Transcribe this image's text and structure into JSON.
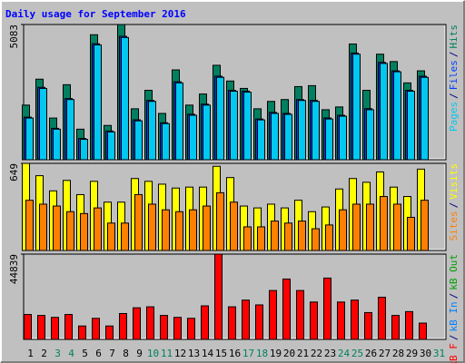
{
  "chart_data": [
    {
      "type": "bar",
      "title": "Daily usage for September 2016",
      "ylim": [
        0,
        5083
      ],
      "yticks": [
        5083
      ],
      "legend_separator": "/",
      "series": [
        {
          "name": "Pages",
          "color": "#00c8f0",
          "values": [
            1566,
            2680,
            1148,
            2262,
            766,
            4315,
            1044,
            4594,
            1462,
            2192,
            1357,
            2888,
            1670,
            2053,
            3097,
            2575,
            2540,
            1496,
            1740,
            1705,
            2227,
            2192,
            1531,
            1636,
            3967,
            1879,
            3619,
            3306,
            2575,
            3097,
            null
          ]
        },
        {
          "name": "Files",
          "color": "#0040ff",
          "values": [
            1600,
            2720,
            1180,
            2300,
            800,
            4360,
            1080,
            4640,
            1500,
            2230,
            1390,
            2930,
            1710,
            2090,
            3140,
            2610,
            2580,
            1530,
            1780,
            1740,
            2260,
            2230,
            1570,
            1670,
            4010,
            1920,
            3660,
            3340,
            2610,
            3140,
            null
          ]
        },
        {
          "name": "Hits",
          "color": "#008060",
          "values": [
            2053,
            3028,
            1566,
            2819,
            1148,
            4698,
            1288,
            5083,
            1914,
            2610,
            1740,
            3376,
            2053,
            2471,
            3550,
            2958,
            2680,
            1914,
            2192,
            2262,
            2749,
            2784,
            1879,
            1984,
            4350,
            2610,
            3967,
            3689,
            2888,
            3341,
            null
          ]
        }
      ]
    },
    {
      "type": "bar",
      "ylim": [
        0,
        649
      ],
      "yticks": [
        649
      ],
      "legend_separator": "/",
      "series": [
        {
          "name": "Sites",
          "color": "#ff8000",
          "values": [
            374,
            345,
            331,
            289,
            275,
            317,
            204,
            204,
            416,
            345,
            303,
            289,
            303,
            331,
            430,
            360,
            176,
            176,
            219,
            204,
            219,
            162,
            190,
            303,
            345,
            345,
            402,
            345,
            247,
            374,
            null
          ]
        },
        {
          "name": "Visits",
          "color": "#ffff00",
          "values": [
            649,
            557,
            444,
            522,
            416,
            515,
            360,
            360,
            536,
            515,
            494,
            465,
            472,
            472,
            627,
            543,
            331,
            317,
            345,
            317,
            374,
            289,
            324,
            458,
            536,
            508,
            585,
            472,
            402,
            606,
            null
          ]
        }
      ]
    },
    {
      "type": "bar",
      "ylim": [
        0,
        44839
      ],
      "yticks": [
        44839
      ],
      "legend_separator": "/",
      "series": [
        {
          "name": "kB F",
          "color": "#ff0000",
          "values": [
            13099,
            12595,
            11587,
            13099,
            7053,
            11084,
            7053,
            13603,
            16625,
            17129,
            12595,
            11587,
            11084,
            17633,
            44839,
            17129,
            20656,
            18137,
            25694,
            31739,
            25694,
            19648,
            32243,
            19648,
            20656,
            14106,
            22167,
            12595,
            14610,
            8565,
            null
          ]
        }
      ],
      "extra_legend": [
        {
          "name": "kB In",
          "color": "#0080ff"
        },
        {
          "name": "kB Out",
          "color": "#00a000"
        }
      ],
      "categories": [
        "1",
        "2",
        "3",
        "4",
        "5",
        "6",
        "7",
        "8",
        "9",
        "10",
        "11",
        "12",
        "13",
        "14",
        "15",
        "16",
        "17",
        "18",
        "19",
        "20",
        "21",
        "22",
        "23",
        "24",
        "25",
        "26",
        "27",
        "28",
        "29",
        "30",
        "31"
      ],
      "category_colors": [
        "#000000",
        "#000000",
        "#008060",
        "#008060",
        "#000000",
        "#000000",
        "#000000",
        "#000000",
        "#000000",
        "#008060",
        "#008060",
        "#000000",
        "#000000",
        "#000000",
        "#000000",
        "#000000",
        "#008060",
        "#008060",
        "#000000",
        "#000000",
        "#000000",
        "#000000",
        "#000000",
        "#008060",
        "#008060",
        "#000000",
        "#000000",
        "#000000",
        "#000000",
        "#000000",
        "#008060"
      ]
    }
  ]
}
